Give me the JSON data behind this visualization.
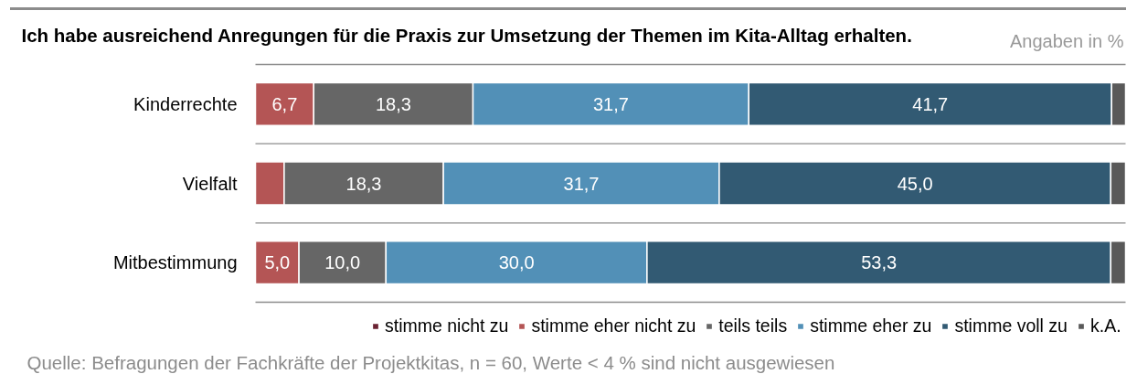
{
  "chart_data": {
    "type": "bar",
    "orientation": "horizontal",
    "stacked": true,
    "title": "Ich habe ausreichend Anregungen für die Praxis zur Umsetzung der Themen im Kita-Alltag erhalten.",
    "subtitle": "Angaben in %",
    "annotations": [
      "Quelle: Befragungen der Fachkräfte der Projektkitas, n = 60, Werte < 4 % sind nicht ausgewiesen"
    ],
    "categories": [
      "Kinderrechte",
      "Vielfalt",
      "Mitbestimmung"
    ],
    "series": [
      {
        "name": "stimme nicht zu",
        "color": "#6b2333",
        "values": [
          0,
          0,
          0
        ]
      },
      {
        "name": "stimme eher nicht zu",
        "color": "#b45555",
        "values": [
          6.7,
          3.3,
          5.0
        ],
        "value_labels": [
          "6,7",
          null,
          "5,0"
        ]
      },
      {
        "name": "teils teils",
        "color": "#666666",
        "values": [
          18.3,
          18.3,
          10.0
        ],
        "value_labels": [
          "18,3",
          "18,3",
          "10,0"
        ]
      },
      {
        "name": "stimme eher zu",
        "color": "#5290b7",
        "values": [
          31.7,
          31.7,
          30.0
        ],
        "value_labels": [
          "31,7",
          "31,7",
          "30,0"
        ]
      },
      {
        "name": "stimme voll zu",
        "color": "#325a73",
        "values": [
          41.7,
          45.0,
          53.3
        ],
        "value_labels": [
          "41,7",
          "45,0",
          "53,3"
        ]
      },
      {
        "name": "k.A.",
        "color": "#595959",
        "values": [
          1.6,
          1.7,
          1.7
        ]
      }
    ],
    "grid": "y",
    "legend": "bottom right"
  }
}
